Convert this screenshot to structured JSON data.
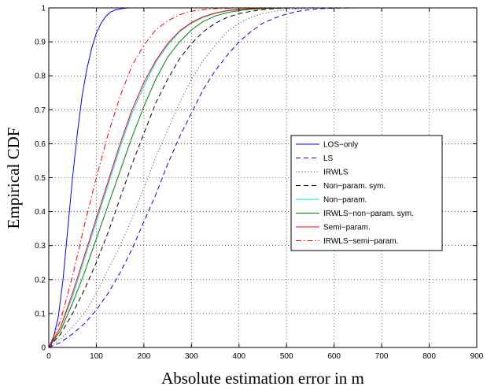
{
  "chart_data": {
    "type": "line",
    "xlabel": "Absolute estimation error in m",
    "ylabel": "Empirical CDF",
    "xlim": [
      0,
      900
    ],
    "ylim": [
      0,
      1
    ],
    "xticks": [
      0,
      100,
      200,
      300,
      400,
      500,
      600,
      700,
      800,
      900
    ],
    "yticks": [
      0,
      0.1,
      0.2,
      0.3,
      0.4,
      0.5,
      0.6,
      0.7,
      0.8,
      0.9,
      1
    ],
    "xtick_labels": [
      "0",
      "100",
      "200",
      "300",
      "400",
      "500",
      "600",
      "700",
      "800",
      "900"
    ],
    "ytick_labels": [
      "0",
      "0.1",
      "0.2",
      "0.3",
      "0.4",
      "0.5",
      "0.6",
      "0.7",
      "0.8",
      "0.9",
      "1"
    ],
    "grid": true,
    "legend_position": "right-middle",
    "series": [
      {
        "name": "LOS−only",
        "color": "#0000ff",
        "dash": "solid",
        "x": [
          0,
          10,
          20,
          30,
          40,
          50,
          60,
          70,
          80,
          90,
          100,
          110,
          120,
          130,
          140,
          150,
          160,
          170,
          180,
          200,
          250,
          900
        ],
        "y": [
          0,
          0.03,
          0.09,
          0.2,
          0.35,
          0.5,
          0.63,
          0.74,
          0.82,
          0.88,
          0.925,
          0.955,
          0.975,
          0.988,
          0.994,
          0.997,
          0.999,
          1,
          1,
          1,
          1,
          1
        ]
      },
      {
        "name": "LS",
        "color": "#0000ff",
        "dash": "dashed",
        "x": [
          0,
          25,
          50,
          75,
          100,
          125,
          150,
          175,
          200,
          225,
          250,
          275,
          300,
          325,
          350,
          375,
          400,
          425,
          450,
          475,
          500,
          525,
          550,
          575,
          600,
          650,
          700,
          900
        ],
        "y": [
          0,
          0.015,
          0.04,
          0.07,
          0.11,
          0.16,
          0.22,
          0.29,
          0.37,
          0.45,
          0.54,
          0.62,
          0.69,
          0.76,
          0.815,
          0.86,
          0.9,
          0.93,
          0.955,
          0.97,
          0.982,
          0.99,
          0.995,
          0.998,
          0.999,
          1,
          1,
          1
        ]
      },
      {
        "name": "IRWLS",
        "color": "#555555",
        "dash": "dotted",
        "x": [
          0,
          25,
          50,
          75,
          100,
          125,
          150,
          175,
          200,
          225,
          250,
          275,
          300,
          325,
          350,
          375,
          400,
          425,
          450,
          475,
          500,
          550,
          600,
          900
        ],
        "y": [
          0,
          0.025,
          0.06,
          0.1,
          0.16,
          0.23,
          0.3,
          0.38,
          0.47,
          0.56,
          0.64,
          0.72,
          0.79,
          0.845,
          0.89,
          0.93,
          0.955,
          0.972,
          0.984,
          0.99,
          0.995,
          0.999,
          1,
          1
        ]
      },
      {
        "name": "Non−param. sym.",
        "color": "#000000",
        "dash": "dashed",
        "x": [
          0,
          25,
          50,
          75,
          100,
          125,
          150,
          175,
          200,
          225,
          250,
          275,
          300,
          325,
          350,
          375,
          400,
          425,
          450,
          475,
          500,
          550,
          900
        ],
        "y": [
          0,
          0.04,
          0.1,
          0.17,
          0.25,
          0.34,
          0.44,
          0.54,
          0.63,
          0.72,
          0.79,
          0.85,
          0.895,
          0.93,
          0.955,
          0.972,
          0.983,
          0.99,
          0.995,
          0.998,
          0.999,
          1,
          1
        ]
      },
      {
        "name": "Non−param.",
        "color": "#00e0e0",
        "dash": "solid",
        "x": [
          0,
          25,
          50,
          75,
          100,
          125,
          150,
          175,
          200,
          225,
          250,
          275,
          300,
          325,
          350,
          375,
          400,
          425,
          450,
          500,
          900
        ],
        "y": [
          0,
          0.06,
          0.15,
          0.26,
          0.37,
          0.48,
          0.59,
          0.69,
          0.77,
          0.84,
          0.89,
          0.93,
          0.955,
          0.972,
          0.984,
          0.991,
          0.995,
          0.998,
          0.999,
          1,
          1
        ]
      },
      {
        "name": "IRWLS−non−param. sym.",
        "color": "#008000",
        "dash": "solid",
        "x": [
          0,
          25,
          50,
          75,
          100,
          125,
          150,
          175,
          200,
          225,
          250,
          275,
          300,
          325,
          350,
          375,
          400,
          425,
          450,
          500,
          900
        ],
        "y": [
          0,
          0.05,
          0.13,
          0.22,
          0.32,
          0.42,
          0.52,
          0.62,
          0.71,
          0.79,
          0.855,
          0.9,
          0.935,
          0.96,
          0.976,
          0.986,
          0.992,
          0.996,
          0.998,
          1,
          1
        ]
      },
      {
        "name": "Semi−param.",
        "color": "#ff0000",
        "dash": "solid",
        "x": [
          0,
          25,
          50,
          75,
          100,
          125,
          150,
          175,
          200,
          225,
          250,
          275,
          300,
          325,
          350,
          375,
          400,
          425,
          450,
          500,
          900
        ],
        "y": [
          0,
          0.06,
          0.16,
          0.27,
          0.38,
          0.49,
          0.6,
          0.7,
          0.78,
          0.845,
          0.895,
          0.932,
          0.957,
          0.974,
          0.985,
          0.992,
          0.996,
          0.998,
          0.999,
          1,
          1
        ]
      },
      {
        "name": "IRWLS−semi−param.",
        "color": "#ff0000",
        "dash": "dashdot",
        "x": [
          0,
          25,
          50,
          75,
          100,
          125,
          150,
          175,
          200,
          225,
          250,
          275,
          300,
          325,
          350,
          400,
          900
        ],
        "y": [
          0,
          0.08,
          0.21,
          0.36,
          0.5,
          0.63,
          0.74,
          0.83,
          0.89,
          0.935,
          0.962,
          0.98,
          0.99,
          0.995,
          0.998,
          1,
          1
        ]
      }
    ]
  }
}
